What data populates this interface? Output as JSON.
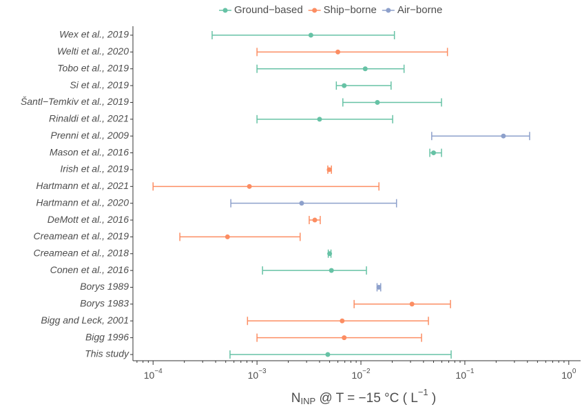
{
  "chart_data": {
    "type": "errorbar",
    "log_x": true,
    "categories": [
      "Wex et al., 2019",
      "Welti et al., 2020",
      "Tobo et al., 2019",
      "Si et al., 2019",
      "Šantl−Temkiv et al., 2019",
      "Rinaldi et al., 2021",
      "Prenni et al., 2009",
      "Mason et al., 2016",
      "Irish et al., 2019",
      "Hartmann et al., 2021",
      "Hartmann et al., 2020",
      "DeMott et al., 2016",
      "Creamean et al., 2019",
      "Creamean et al., 2018",
      "Conen et al., 2016",
      "Borys 1989",
      "Borys 1983",
      "Bigg and Leck, 2001",
      "Bigg 1996",
      "This study"
    ],
    "series": [
      {
        "name": "Ground−based",
        "color": "#66c2a5",
        "values": [
          0.0033,
          null,
          0.011,
          0.0069,
          0.0144,
          0.004,
          null,
          0.05,
          null,
          null,
          null,
          null,
          null,
          0.005,
          0.0052,
          null,
          null,
          null,
          null,
          0.0048
        ],
        "xerr_low": [
          0.00037,
          null,
          0.001,
          0.0058,
          0.0067,
          0.001,
          null,
          0.046,
          null,
          null,
          null,
          null,
          null,
          0.00485,
          0.00113,
          null,
          null,
          null,
          null,
          0.00055
        ],
        "xerr_high": [
          0.021,
          null,
          0.026,
          0.0195,
          0.0596,
          0.0202,
          null,
          0.0596,
          null,
          null,
          null,
          null,
          null,
          0.00515,
          0.0113,
          null,
          null,
          null,
          null,
          0.0738
        ]
      },
      {
        "name": "Ship−borne",
        "color": "#fc8d62",
        "values": [
          null,
          0.006,
          null,
          null,
          null,
          null,
          null,
          null,
          0.00495,
          0.000845,
          null,
          0.0036,
          0.00052,
          null,
          null,
          null,
          0.031,
          0.0066,
          0.0069,
          null
        ],
        "xerr_low": [
          null,
          0.001,
          null,
          null,
          null,
          null,
          null,
          null,
          0.0048,
          0.0001,
          null,
          0.00318,
          0.000181,
          null,
          null,
          null,
          0.0086,
          0.00081,
          0.001,
          null
        ],
        "xerr_high": [
          null,
          0.068,
          null,
          null,
          null,
          null,
          null,
          null,
          0.0052,
          0.0149,
          null,
          0.00406,
          0.0026,
          null,
          null,
          null,
          0.0727,
          0.0446,
          0.0383,
          null
        ]
      },
      {
        "name": "Air−borne",
        "color": "#8da0cb",
        "values": [
          null,
          null,
          null,
          null,
          null,
          null,
          0.235,
          null,
          null,
          null,
          0.00269,
          null,
          null,
          null,
          null,
          0.0149,
          null,
          null,
          null,
          null
        ],
        "xerr_low": [
          null,
          null,
          null,
          null,
          null,
          null,
          0.048,
          null,
          null,
          null,
          0.00056,
          null,
          null,
          null,
          null,
          0.0143,
          null,
          null,
          null,
          null
        ],
        "xerr_high": [
          null,
          null,
          null,
          null,
          null,
          null,
          0.42,
          null,
          null,
          null,
          0.022,
          null,
          null,
          null,
          null,
          0.0155,
          null,
          null,
          null,
          null
        ]
      }
    ],
    "xlim": [
      6.4e-05,
      1.3
    ],
    "xticks": [
      {
        "value": 0.0001,
        "label": "10",
        "exponent": "−4"
      },
      {
        "value": 0.001,
        "label": "10",
        "exponent": "−3"
      },
      {
        "value": 0.01,
        "label": "10",
        "exponent": "−2"
      },
      {
        "value": 0.1,
        "label": "10",
        "exponent": "−1"
      },
      {
        "value": 1,
        "label": "10",
        "exponent": "0"
      }
    ],
    "x_label": {
      "text": "N",
      "sub": "INP",
      "rest": " @ T = −15 °C ( L",
      "sup": "−1",
      "end": " )"
    },
    "legend": "top"
  }
}
